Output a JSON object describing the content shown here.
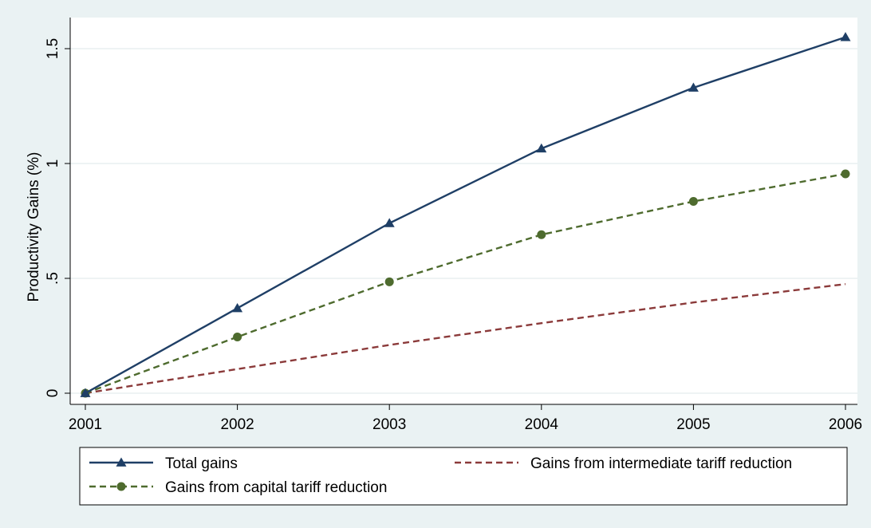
{
  "chart_data": {
    "type": "line",
    "title": "",
    "xlabel": "",
    "ylabel": "Productivity Gains (%)",
    "x": [
      2001,
      2002,
      2003,
      2004,
      2005,
      2006
    ],
    "xticks": [
      "2001",
      "2002",
      "2003",
      "2004",
      "2005",
      "2006"
    ],
    "yticks": [
      {
        "value": 0,
        "label": "0"
      },
      {
        "value": 0.5,
        "label": ".5"
      },
      {
        "value": 1,
        "label": "1"
      },
      {
        "value": 1.5,
        "label": "1.5"
      }
    ],
    "xlim": [
      2001,
      2006
    ],
    "ylim": [
      -0.02,
      1.6
    ],
    "grid": true,
    "legend_position": "bottom",
    "series": [
      {
        "name": "Total gains",
        "values": [
          0,
          0.37,
          0.74,
          1.065,
          1.33,
          1.55
        ],
        "color": "#1f3f66",
        "dash": "solid",
        "marker": "triangle"
      },
      {
        "name": "Gains from intermediate tariff reduction",
        "values": [
          0,
          0.105,
          0.21,
          0.305,
          0.395,
          0.475
        ],
        "color": "#8b3a3a",
        "dash": "dashed",
        "marker": "none"
      },
      {
        "name": "Gains from capital tariff reduction",
        "values": [
          0,
          0.245,
          0.485,
          0.69,
          0.835,
          0.955
        ],
        "color": "#4e6b2e",
        "dash": "dashed",
        "marker": "circle"
      }
    ]
  }
}
